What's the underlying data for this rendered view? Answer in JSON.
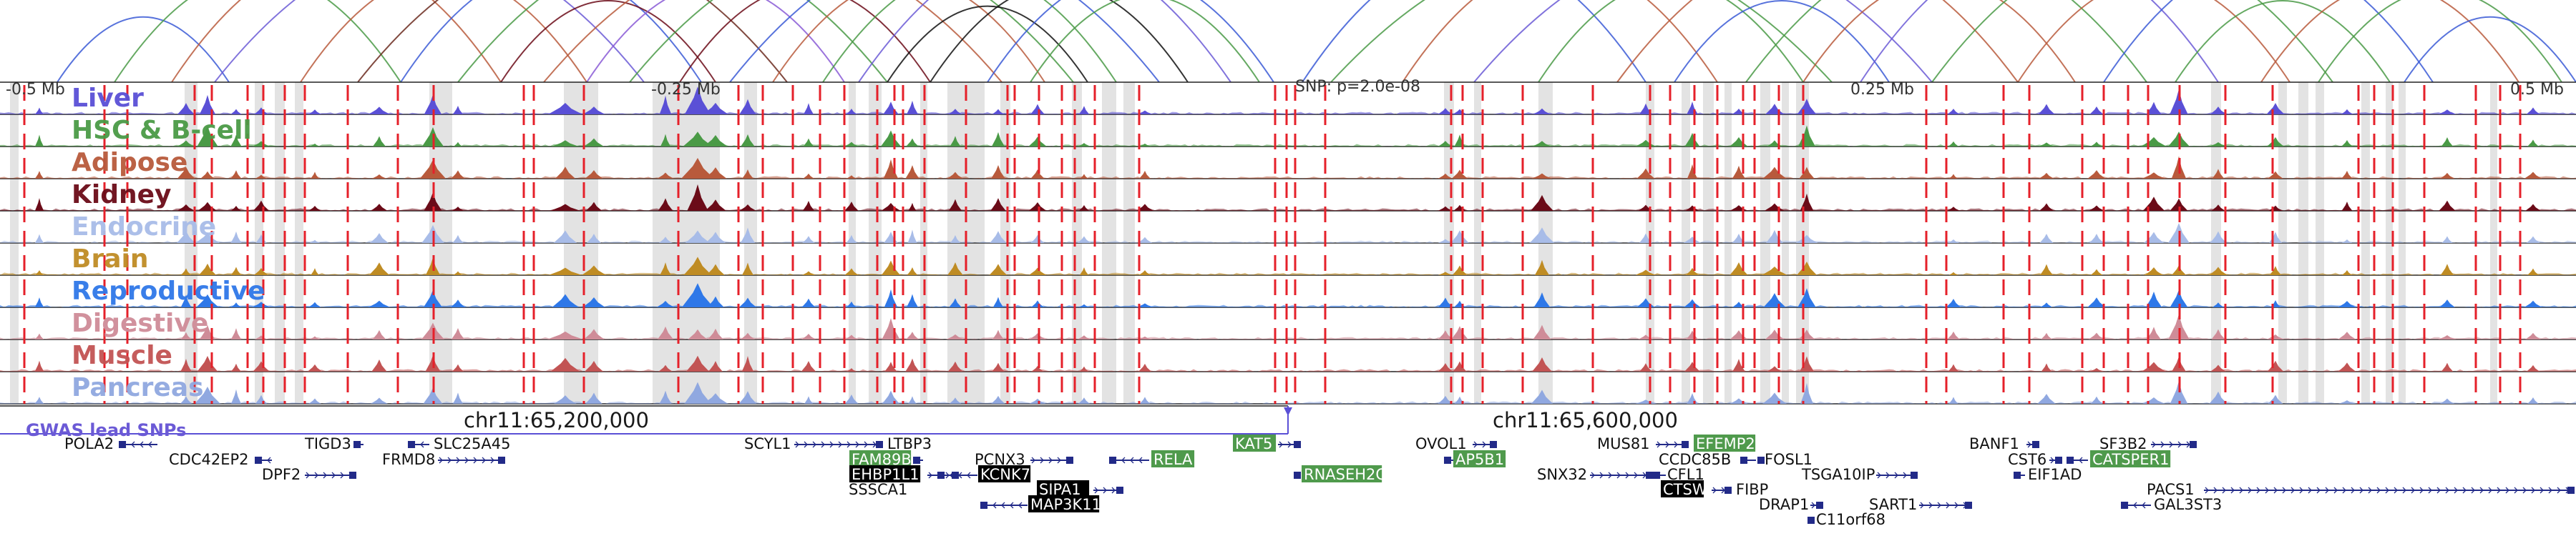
{
  "axis": {
    "left_label": "-0.5 Mb",
    "left_mid_label": "-0.25 Mb",
    "snp_label": "SNP: p=2.0e-08",
    "right_mid_label": "0.25 Mb",
    "right_label": "0.5 Mb",
    "coord_left": "chr11:65,200,000",
    "coord_right": "chr11:65,600,000",
    "gwas_label": "GWAS lead SNPs"
  },
  "chart_data": {
    "type": "area",
    "tracks": [
      {
        "name": "Liver",
        "color": "#5a50d6"
      },
      {
        "name": "HSC & B-cell",
        "color": "#4a9a46"
      },
      {
        "name": "Adipose",
        "color": "#b85a3c"
      },
      {
        "name": "Kidney",
        "color": "#6b0b18"
      },
      {
        "name": "Endocrine",
        "color": "#a8bce8"
      },
      {
        "name": "Brain",
        "color": "#bf8c24"
      },
      {
        "name": "Reproductive",
        "color": "#2f78e8"
      },
      {
        "name": "Digestive",
        "color": "#cf8c98"
      },
      {
        "name": "Muscle",
        "color": "#c25454"
      },
      {
        "name": "Pancreas",
        "color": "#90a8e0"
      }
    ],
    "xlim": [
      0,
      3600
    ],
    "snp_x": 1800,
    "peaks": [
      {
        "x": 55,
        "w": 8,
        "h": 0.45
      },
      {
        "x": 260,
        "w": 10,
        "h": 0.55
      },
      {
        "x": 290,
        "w": 14,
        "h": 0.75
      },
      {
        "x": 330,
        "w": 8,
        "h": 0.5
      },
      {
        "x": 365,
        "w": 10,
        "h": 0.4
      },
      {
        "x": 440,
        "w": 8,
        "h": 0.3
      },
      {
        "x": 530,
        "w": 12,
        "h": 0.45
      },
      {
        "x": 605,
        "w": 14,
        "h": 0.95
      },
      {
        "x": 640,
        "w": 8,
        "h": 0.4
      },
      {
        "x": 790,
        "w": 20,
        "h": 0.55
      },
      {
        "x": 830,
        "w": 14,
        "h": 0.45
      },
      {
        "x": 930,
        "w": 10,
        "h": 0.65
      },
      {
        "x": 975,
        "w": 18,
        "h": 1.0
      },
      {
        "x": 1000,
        "w": 14,
        "h": 0.85
      },
      {
        "x": 1045,
        "w": 10,
        "h": 0.6
      },
      {
        "x": 1130,
        "w": 8,
        "h": 0.4
      },
      {
        "x": 1190,
        "w": 8,
        "h": 0.35
      },
      {
        "x": 1245,
        "w": 12,
        "h": 0.75
      },
      {
        "x": 1275,
        "w": 8,
        "h": 0.55
      },
      {
        "x": 1335,
        "w": 10,
        "h": 0.45
      },
      {
        "x": 1395,
        "w": 10,
        "h": 0.5
      },
      {
        "x": 1450,
        "w": 10,
        "h": 0.4
      },
      {
        "x": 1515,
        "w": 8,
        "h": 0.3
      },
      {
        "x": 1600,
        "w": 10,
        "h": 0.3
      },
      {
        "x": 2020,
        "w": 10,
        "h": 0.35
      },
      {
        "x": 2040,
        "w": 10,
        "h": 0.5
      },
      {
        "x": 2155,
        "w": 14,
        "h": 0.55
      },
      {
        "x": 2300,
        "w": 12,
        "h": 0.4
      },
      {
        "x": 2365,
        "w": 10,
        "h": 0.5
      },
      {
        "x": 2430,
        "w": 12,
        "h": 0.55
      },
      {
        "x": 2480,
        "w": 14,
        "h": 0.5
      },
      {
        "x": 2525,
        "w": 12,
        "h": 0.75
      },
      {
        "x": 2730,
        "w": 8,
        "h": 0.3
      },
      {
        "x": 2860,
        "w": 10,
        "h": 0.4
      },
      {
        "x": 2930,
        "w": 10,
        "h": 0.35
      },
      {
        "x": 3010,
        "w": 14,
        "h": 0.55
      },
      {
        "x": 3045,
        "w": 12,
        "h": 0.9
      },
      {
        "x": 3100,
        "w": 10,
        "h": 0.45
      },
      {
        "x": 3180,
        "w": 10,
        "h": 0.4
      },
      {
        "x": 3280,
        "w": 10,
        "h": 0.35
      },
      {
        "x": 3420,
        "w": 10,
        "h": 0.4
      },
      {
        "x": 3540,
        "w": 10,
        "h": 0.3
      }
    ],
    "gray_bands": [
      [
        14,
        26
      ],
      [
        258,
        276
      ],
      [
        356,
        368
      ],
      [
        384,
        398
      ],
      [
        412,
        424
      ],
      [
        600,
        632
      ],
      [
        788,
        836
      ],
      [
        912,
        1006
      ],
      [
        1040,
        1058
      ],
      [
        1186,
        1196
      ],
      [
        1214,
        1232
      ],
      [
        1286,
        1296
      ],
      [
        1324,
        1376
      ],
      [
        1398,
        1412
      ],
      [
        1498,
        1512
      ],
      [
        1540,
        1560
      ],
      [
        1570,
        1586
      ],
      [
        2018,
        2032
      ],
      [
        2060,
        2070
      ],
      [
        2150,
        2170
      ],
      [
        2300,
        2312
      ],
      [
        2350,
        2362
      ],
      [
        2380,
        2395
      ],
      [
        2410,
        2420
      ],
      [
        2460,
        2474
      ],
      [
        2490,
        2500
      ],
      [
        2510,
        2528
      ],
      [
        3090,
        3104
      ],
      [
        3184,
        3196
      ],
      [
        3212,
        3226
      ],
      [
        3236,
        3248
      ],
      [
        3300,
        3312
      ],
      [
        3334,
        3344
      ],
      [
        3352,
        3362
      ],
      [
        3480,
        3490
      ],
      [
        3600,
        3600
      ]
    ],
    "red_lines": [
      34,
      146,
      178,
      272,
      296,
      346,
      368,
      398,
      426,
      486,
      556,
      606,
      732,
      746,
      816,
      948,
      1032,
      1066,
      1108,
      1146,
      1180,
      1226,
      1250,
      1262,
      1292,
      1350,
      1408,
      1418,
      1452,
      1484,
      1502,
      1530,
      1592,
      1782,
      1798,
      1810,
      1852,
      2028,
      2044,
      2072,
      2128,
      2226,
      2306,
      2334,
      2368,
      2400,
      2436,
      2452,
      2486,
      2520,
      2692,
      2720,
      2800,
      2836,
      2910,
      2940,
      2974,
      3002,
      3046,
      3110,
      3176,
      3296,
      3318,
      3344,
      3388,
      3460,
      3494,
      3522
    ],
    "loops": [
      {
        "x1": 80,
        "x2": 320,
        "c": "#3b5bd6"
      },
      {
        "x1": 160,
        "x2": 560,
        "c": "#4a9a46"
      },
      {
        "x1": 240,
        "x2": 700,
        "c": "#b85a3c"
      },
      {
        "x1": 300,
        "x2": 900,
        "c": "#6b5ad6"
      },
      {
        "x1": 420,
        "x2": 820,
        "c": "#b85a3c"
      },
      {
        "x1": 500,
        "x2": 1100,
        "c": "#6b2a1e"
      },
      {
        "x1": 560,
        "x2": 980,
        "c": "#3b5bd6"
      },
      {
        "x1": 640,
        "x2": 1240,
        "c": "#4a9a46"
      },
      {
        "x1": 700,
        "x2": 1000,
        "c": "#6b0b18"
      },
      {
        "x1": 760,
        "x2": 1400,
        "c": "#b85a3c"
      },
      {
        "x1": 820,
        "x2": 1180,
        "c": "#8a5ad6"
      },
      {
        "x1": 880,
        "x2": 1500,
        "c": "#4a9a46"
      },
      {
        "x1": 950,
        "x2": 1300,
        "c": "#6b0b18"
      },
      {
        "x1": 1020,
        "x2": 1620,
        "c": "#3b5bd6"
      },
      {
        "x1": 1080,
        "x2": 1460,
        "c": "#b85a3c"
      },
      {
        "x1": 1150,
        "x2": 1560,
        "c": "#4a9a46"
      },
      {
        "x1": 1200,
        "x2": 1720,
        "c": "#6b5ad6"
      },
      {
        "x1": 1240,
        "x2": 1520,
        "c": "#111111"
      },
      {
        "x1": 1300,
        "x2": 1660,
        "c": "#111111"
      },
      {
        "x1": 1380,
        "x2": 1780,
        "c": "#3b5bd6"
      },
      {
        "x1": 1440,
        "x2": 1760,
        "c": "#4a9a46"
      },
      {
        "x1": 1820,
        "x2": 2300,
        "c": "#3b5bd6"
      },
      {
        "x1": 1860,
        "x2": 2560,
        "c": "#4a9a46"
      },
      {
        "x1": 1960,
        "x2": 2400,
        "c": "#b85a3c"
      },
      {
        "x1": 2060,
        "x2": 2700,
        "c": "#6b5ad6"
      },
      {
        "x1": 2150,
        "x2": 2520,
        "c": "#4a9a46"
      },
      {
        "x1": 2260,
        "x2": 2820,
        "c": "#b85a3c"
      },
      {
        "x1": 2340,
        "x2": 2640,
        "c": "#3b5bd6"
      },
      {
        "x1": 2440,
        "x2": 3000,
        "c": "#4a9a46"
      },
      {
        "x1": 2520,
        "x2": 2900,
        "c": "#b85a3c"
      },
      {
        "x1": 2600,
        "x2": 3100,
        "c": "#6b5ad6"
      },
      {
        "x1": 2700,
        "x2": 3260,
        "c": "#4a9a46"
      },
      {
        "x1": 2820,
        "x2": 3200,
        "c": "#b85a3c"
      },
      {
        "x1": 2940,
        "x2": 3400,
        "c": "#3b5bd6"
      },
      {
        "x1": 3040,
        "x2": 3340,
        "c": "#4a9a46"
      },
      {
        "x1": 3160,
        "x2": 3520,
        "c": "#b85a3c"
      },
      {
        "x1": 3240,
        "x2": 3580,
        "c": "#4a9a46"
      },
      {
        "x1": 3360,
        "x2": 3600,
        "c": "#3b5bd6"
      }
    ],
    "genes": [
      {
        "label": "POLA2",
        "x": 90,
        "row": 0,
        "x0": 166,
        "x1": 220,
        "style": "plain",
        "dir": "l",
        "anchor": "end"
      },
      {
        "label": "CDC42EP2",
        "x": 236,
        "row": 1,
        "x0": 356,
        "x1": 380,
        "style": "plain",
        "dir": "l",
        "anchor": "start"
      },
      {
        "label": "DPF2",
        "x": 366,
        "row": 2,
        "x0": 426,
        "x1": 498,
        "style": "plain",
        "dir": "r",
        "anchor": "start"
      },
      {
        "label": "TIGD3",
        "x": 426,
        "row": 0,
        "x0": 494,
        "x1": 508,
        "style": "plain",
        "dir": "l",
        "anchor": "start"
      },
      {
        "label": "FRMD8",
        "x": 534,
        "row": 1,
        "x0": 612,
        "x1": 706,
        "style": "plain",
        "dir": "r",
        "anchor": "start"
      },
      {
        "label": "SLC25A45",
        "x": 606,
        "row": 0,
        "x0": 570,
        "x1": 600,
        "style": "plain",
        "dir": "l",
        "anchor": "start"
      },
      {
        "label": "SCYL1",
        "x": 1040,
        "row": 0,
        "x0": 1110,
        "x1": 1234,
        "style": "plain",
        "dir": "r",
        "anchor": "start"
      },
      {
        "label": "LTBP3",
        "x": 1240,
        "row": 0,
        "x0": 0,
        "x1": 0,
        "style": "plain",
        "dir": "r",
        "anchor": "start"
      },
      {
        "label": "FAM89B",
        "x": 1190,
        "row": 1,
        "x0": 1276,
        "x1": 1290,
        "style": "green",
        "dir": "l",
        "anchor": "start"
      },
      {
        "label": "EHBP1L1",
        "x": 1190,
        "row": 2,
        "x0": 1296,
        "x1": 1340,
        "style": "black",
        "dir": "r",
        "anchor": "start"
      },
      {
        "label": "SSSCA1",
        "x": 1186,
        "row": 3,
        "x0": 0,
        "x1": 0,
        "style": "plain",
        "dir": "r",
        "anchor": "start"
      },
      {
        "label": "PCNX3",
        "x": 1362,
        "row": 1,
        "x0": 1440,
        "x1": 1500,
        "style": "plain",
        "dir": "r",
        "anchor": "start"
      },
      {
        "label": "KCNK7",
        "x": 1370,
        "row": 2,
        "x0": 1310,
        "x1": 1366,
        "style": "black",
        "dir": "l",
        "anchor": "start"
      },
      {
        "label": "SIPA1",
        "x": 1452,
        "row": 3,
        "x0": 1528,
        "x1": 1570,
        "style": "black",
        "dir": "r",
        "anchor": "start"
      },
      {
        "label": "MAP3K11",
        "x": 1440,
        "row": 4,
        "x0": 1370,
        "x1": 1436,
        "style": "black",
        "dir": "l",
        "anchor": "start"
      },
      {
        "label": "RELA",
        "x": 1612,
        "row": 1,
        "x0": 1550,
        "x1": 1606,
        "style": "green",
        "dir": "l",
        "anchor": "start"
      },
      {
        "label": "KAT5",
        "x": 1726,
        "row": 0,
        "x0": 1786,
        "x1": 1818,
        "style": "green",
        "dir": "r",
        "anchor": "start"
      },
      {
        "label": "RNASEH2C",
        "x": 1822,
        "row": 2,
        "x0": 1808,
        "x1": 1818,
        "style": "green",
        "dir": "l",
        "anchor": "start"
      },
      {
        "label": "OVOL1",
        "x": 1978,
        "row": 0,
        "x0": 2058,
        "x1": 2092,
        "style": "plain",
        "dir": "r",
        "anchor": "start"
      },
      {
        "label": "AP5B1",
        "x": 2034,
        "row": 1,
        "x0": 2018,
        "x1": 2032,
        "style": "green",
        "dir": "l",
        "anchor": "start"
      },
      {
        "label": "SNX32",
        "x": 2148,
        "row": 2,
        "x0": 2222,
        "x1": 2310,
        "style": "plain",
        "dir": "r",
        "anchor": "start"
      },
      {
        "label": "MUS81",
        "x": 2232,
        "row": 0,
        "x0": 2314,
        "x1": 2360,
        "style": "plain",
        "dir": "r",
        "anchor": "start"
      },
      {
        "label": "EFEMP2",
        "x": 2370,
        "row": 0,
        "x0": 0,
        "x1": 0,
        "style": "green",
        "dir": "l",
        "anchor": "start"
      },
      {
        "label": "CCDC85B",
        "x": 2318,
        "row": 1,
        "x0": 2432,
        "x1": 2454,
        "style": "plain",
        "dir": "l",
        "anchor": "start"
      },
      {
        "label": "CFL1",
        "x": 2330,
        "row": 2,
        "x0": 2310,
        "x1": 2328,
        "style": "plain",
        "dir": "l",
        "anchor": "start"
      },
      {
        "label": "FOSL1",
        "x": 2466,
        "row": 1,
        "x0": 2456,
        "x1": 2464,
        "style": "plain",
        "dir": "l",
        "anchor": "start"
      },
      {
        "label": "CTSW",
        "x": 2324,
        "row": 3,
        "x0": 2392,
        "x1": 2420,
        "style": "black",
        "dir": "r",
        "anchor": "start"
      },
      {
        "label": "FIBP",
        "x": 2426,
        "row": 3,
        "x0": 0,
        "x1": 0,
        "style": "plain",
        "dir": "l",
        "anchor": "start"
      },
      {
        "label": "TSGA10IP",
        "x": 2518,
        "row": 2,
        "x0": 2622,
        "x1": 2680,
        "style": "plain",
        "dir": "r",
        "anchor": "start"
      },
      {
        "label": "DRAP1",
        "x": 2458,
        "row": 4,
        "x0": 2530,
        "x1": 2548,
        "style": "plain",
        "dir": "r",
        "anchor": "start"
      },
      {
        "label": "C11orf68",
        "x": 2538,
        "row": 5,
        "x0": 2526,
        "x1": 2530,
        "style": "plain",
        "dir": "l",
        "anchor": "start"
      },
      {
        "label": "SART1",
        "x": 2612,
        "row": 4,
        "x0": 2682,
        "x1": 2756,
        "style": "plain",
        "dir": "r",
        "anchor": "start"
      },
      {
        "label": "BANF1",
        "x": 2752,
        "row": 0,
        "x0": 2832,
        "x1": 2850,
        "style": "plain",
        "dir": "r",
        "anchor": "start"
      },
      {
        "label": "CST6",
        "x": 2806,
        "row": 1,
        "x0": 2864,
        "x1": 2882,
        "style": "plain",
        "dir": "r",
        "anchor": "start"
      },
      {
        "label": "EIF1AD",
        "x": 2834,
        "row": 2,
        "x0": 2814,
        "x1": 2830,
        "style": "plain",
        "dir": "l",
        "anchor": "start"
      },
      {
        "label": "SF3B2",
        "x": 2934,
        "row": 0,
        "x0": 3006,
        "x1": 3070,
        "style": "plain",
        "dir": "r",
        "anchor": "start"
      },
      {
        "label": "CATSPER1",
        "x": 2924,
        "row": 1,
        "x0": 2888,
        "x1": 2918,
        "style": "green",
        "dir": "l",
        "anchor": "start"
      },
      {
        "label": "PACS1",
        "x": 3000,
        "row": 3,
        "x0": 3080,
        "x1": 3598,
        "style": "plain",
        "dir": "r",
        "anchor": "start"
      },
      {
        "label": "GAL3ST3",
        "x": 3010,
        "row": 4,
        "x0": 2964,
        "x1": 3006,
        "style": "plain",
        "dir": "l",
        "anchor": "start"
      }
    ]
  }
}
